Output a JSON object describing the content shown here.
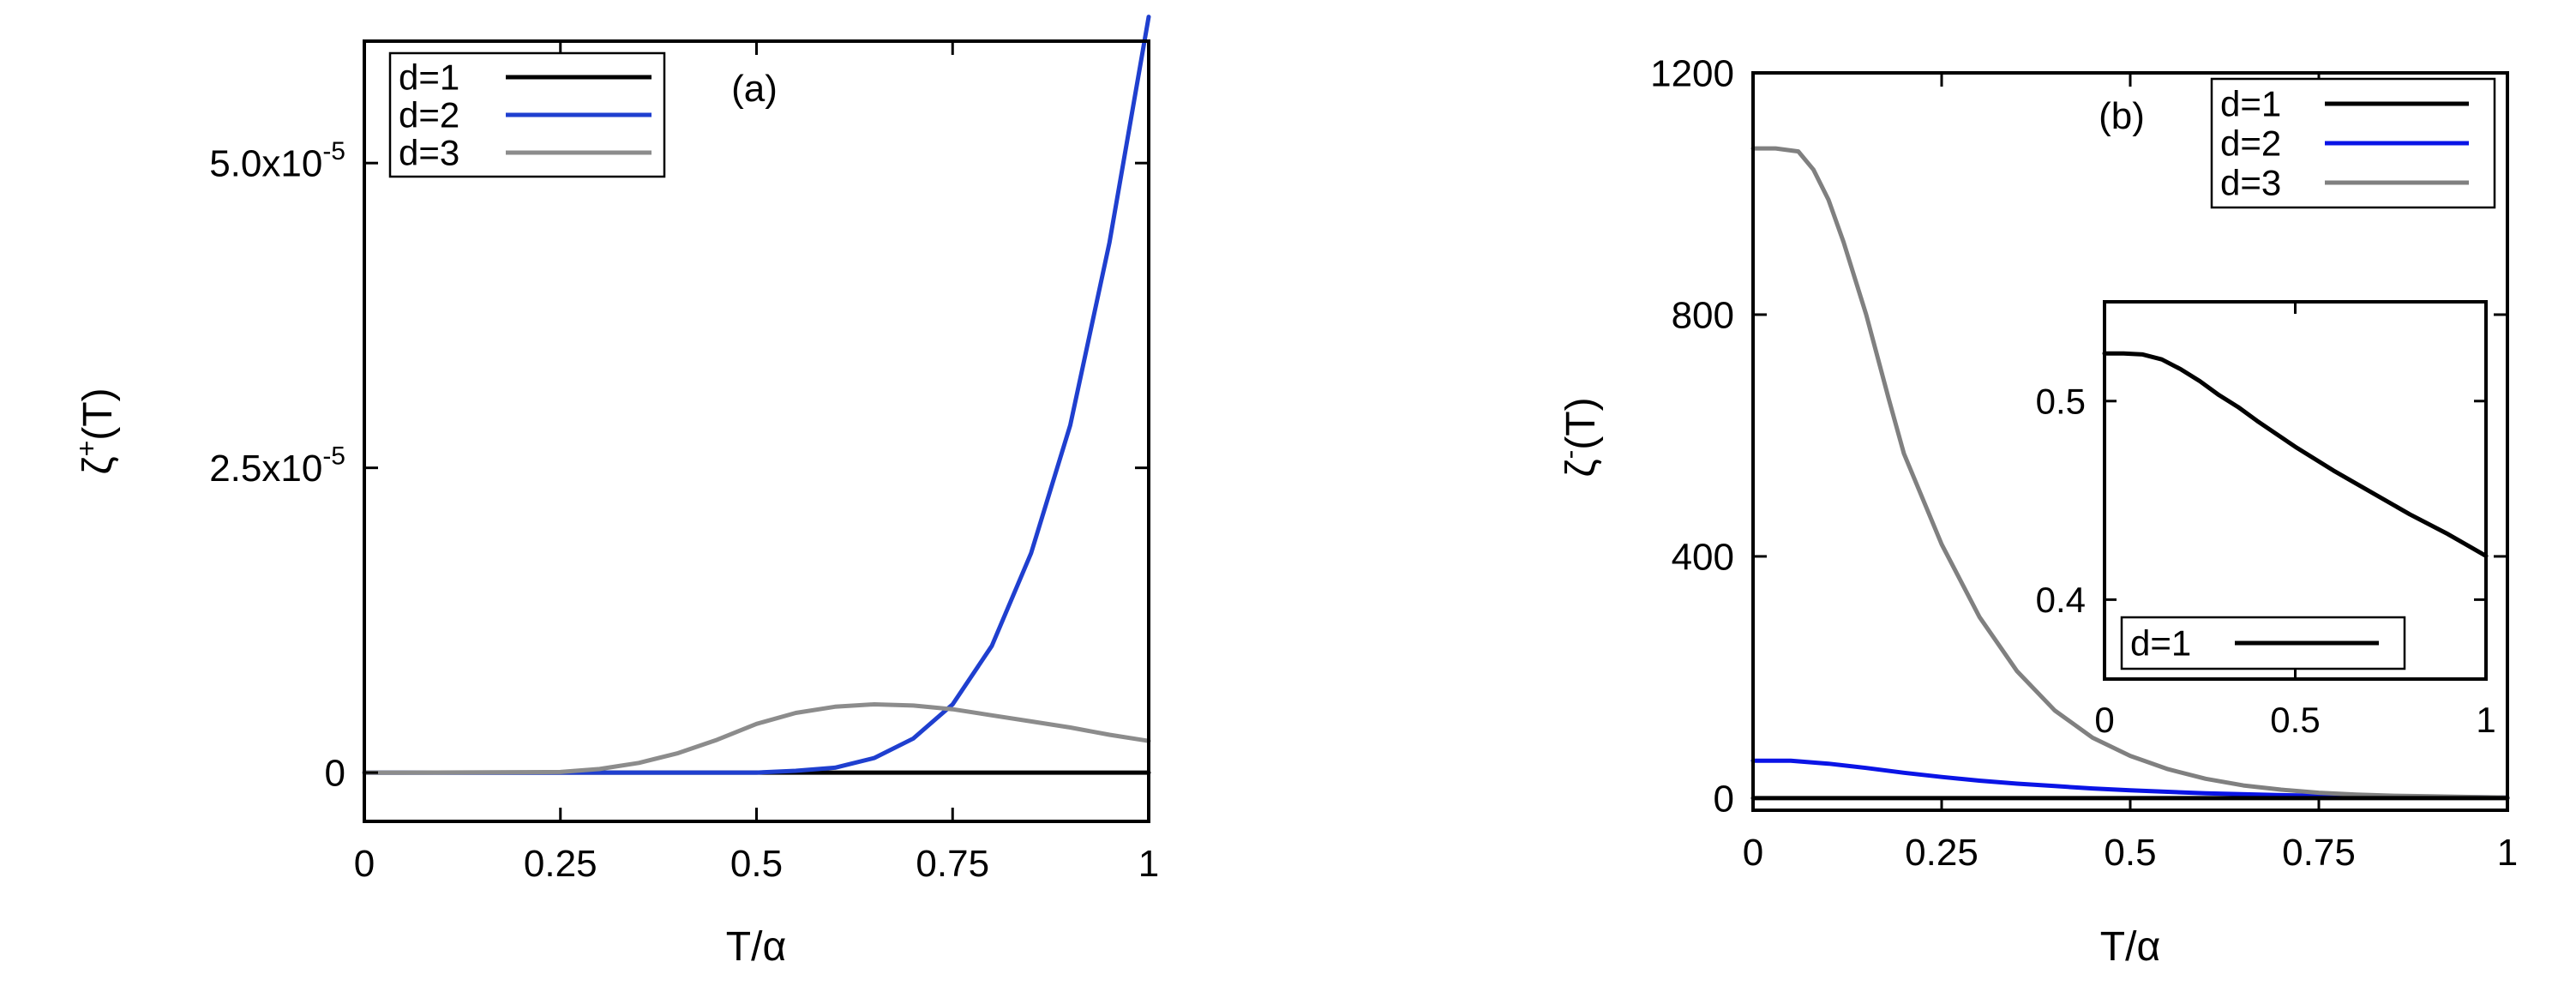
{
  "chart_data": [
    {
      "type": "line",
      "panel_label": "(a)",
      "xlabel": "T/α",
      "ylabel": {
        "base": "ζ",
        "sup": "+",
        "tail": "(T)"
      },
      "xlim": [
        0,
        1
      ],
      "ylim": [
        -4e-06,
        6e-05
      ],
      "xticks": [
        0,
        0.25,
        0.5,
        0.75,
        1
      ],
      "xtick_labels": [
        "0",
        "0.25",
        "0.5",
        "0.75",
        "1"
      ],
      "yticks": [
        {
          "value": 0,
          "mant": "0",
          "exp": ""
        },
        {
          "value": 2.5e-05,
          "mant": "2.5x10",
          "exp": "-5"
        },
        {
          "value": 5e-05,
          "mant": "5.0x10",
          "exp": "-5"
        }
      ],
      "legend_position": "top-left",
      "series": [
        {
          "name": "d=1",
          "color": "#000000",
          "x": [
            0,
            0.25,
            0.5,
            0.75,
            1
          ],
          "y": [
            0,
            0,
            0,
            0,
            0
          ]
        },
        {
          "name": "d=2",
          "color": "#1f3fcf",
          "x": [
            0,
            0.5,
            0.55,
            0.6,
            0.65,
            0.7,
            0.75,
            0.8,
            0.85,
            0.9,
            0.95,
            1.0
          ],
          "y": [
            0,
            0,
            1.5e-07,
            4e-07,
            1.2e-06,
            2.8e-06,
            5.6e-06,
            1.04e-05,
            1.8e-05,
            2.85e-05,
            4.35e-05,
            6.2e-05
          ]
        },
        {
          "name": "d=3",
          "color": "#8c8c8c",
          "x": [
            0,
            0.05,
            0.25,
            0.3,
            0.35,
            0.4,
            0.45,
            0.5,
            0.55,
            0.6,
            0.65,
            0.7,
            0.75,
            0.8,
            0.85,
            0.9,
            0.95,
            1.0
          ],
          "y": [
            0,
            0,
            5e-08,
            3e-07,
            8e-07,
            1.6e-06,
            2.7e-06,
            4e-06,
            4.9e-06,
            5.4e-06,
            5.6e-06,
            5.5e-06,
            5.2e-06,
            4.7e-06,
            4.2e-06,
            3.7e-06,
            3.1e-06,
            2.6e-06
          ]
        }
      ]
    },
    {
      "type": "line",
      "panel_label": "(b)",
      "xlabel": "T/α",
      "ylabel": {
        "base": "ζ",
        "sup": "-",
        "tail": "(T)"
      },
      "xlim": [
        0,
        1
      ],
      "ylim": [
        -20,
        1200
      ],
      "xticks": [
        0,
        0.25,
        0.5,
        0.75,
        1
      ],
      "xtick_labels": [
        "0",
        "0.25",
        "0.5",
        "0.75",
        "1"
      ],
      "yticks": [
        {
          "value": 0,
          "mant": "0",
          "exp": ""
        },
        {
          "value": 400,
          "mant": "400",
          "exp": ""
        },
        {
          "value": 800,
          "mant": "800",
          "exp": ""
        },
        {
          "value": 1200,
          "mant": "1200",
          "exp": ""
        }
      ],
      "legend_position": "top-right",
      "series": [
        {
          "name": "d=1",
          "color": "#000000",
          "x": [
            0,
            0.25,
            0.5,
            0.75,
            1
          ],
          "y": [
            0.52,
            0.49,
            0.46,
            0.44,
            0.41
          ]
        },
        {
          "name": "d=2",
          "color": "#0a14e6",
          "x": [
            0,
            0.05,
            0.1,
            0.15,
            0.2,
            0.25,
            0.3,
            0.35,
            0.4,
            0.45,
            0.5,
            0.6,
            0.7,
            0.8,
            0.9,
            1.0
          ],
          "y": [
            62,
            62,
            57,
            50,
            42,
            35,
            29,
            24,
            20,
            16,
            13,
            8,
            5,
            3,
            2,
            1
          ]
        },
        {
          "name": "d=3",
          "color": "#808080",
          "x": [
            0,
            0.03,
            0.06,
            0.08,
            0.1,
            0.12,
            0.15,
            0.18,
            0.2,
            0.25,
            0.3,
            0.35,
            0.4,
            0.45,
            0.5,
            0.55,
            0.6,
            0.65,
            0.7,
            0.75,
            0.8,
            0.85,
            0.9,
            0.95,
            1.0
          ],
          "y": [
            1075,
            1075,
            1070,
            1040,
            990,
            920,
            800,
            660,
            570,
            420,
            300,
            210,
            145,
            100,
            70,
            48,
            32,
            21,
            14,
            9,
            6,
            4,
            3,
            2,
            1
          ]
        }
      ],
      "inset": {
        "type": "line",
        "xlim": [
          0,
          1
        ],
        "ylim": [
          0.36,
          0.55
        ],
        "xticks": [
          0,
          0.5,
          1
        ],
        "xtick_labels": [
          "0",
          "0.5",
          "1"
        ],
        "yticks": [
          {
            "value": 0.4,
            "label": "0.4"
          },
          {
            "value": 0.5,
            "label": "0.5"
          }
        ],
        "legend_position": "bottom-left",
        "series": [
          {
            "name": "d=1",
            "color": "#000000",
            "x": [
              0,
              0.05,
              0.1,
              0.15,
              0.2,
              0.25,
              0.3,
              0.35,
              0.4,
              0.5,
              0.6,
              0.7,
              0.8,
              0.9,
              1.0
            ],
            "y": [
              0.524,
              0.524,
              0.5235,
              0.521,
              0.516,
              0.51,
              0.503,
              0.497,
              0.49,
              0.477,
              0.465,
              0.454,
              0.443,
              0.433,
              0.422
            ]
          }
        ]
      }
    }
  ]
}
